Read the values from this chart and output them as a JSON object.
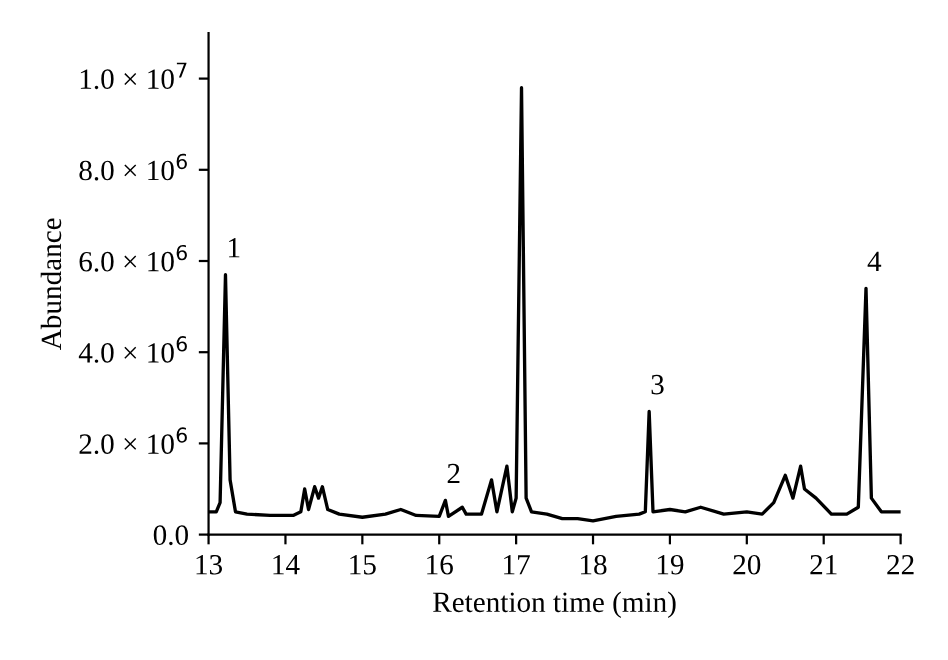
{
  "chart_data": {
    "type": "line",
    "xlabel": "Retention time (min)",
    "ylabel": "Abundance",
    "x": [
      13.0,
      13.1,
      13.15,
      13.22,
      13.28,
      13.35,
      13.5,
      13.8,
      14.1,
      14.2,
      14.25,
      14.3,
      14.38,
      14.43,
      14.48,
      14.55,
      14.7,
      15.0,
      15.3,
      15.5,
      15.7,
      16.0,
      16.08,
      16.12,
      16.3,
      16.35,
      16.55,
      16.68,
      16.75,
      16.88,
      16.95,
      17.0,
      17.07,
      17.13,
      17.2,
      17.4,
      17.6,
      17.8,
      18.0,
      18.3,
      18.6,
      18.68,
      18.73,
      18.78,
      19.0,
      19.2,
      19.4,
      19.7,
      20.0,
      20.2,
      20.35,
      20.5,
      20.6,
      20.7,
      20.75,
      20.9,
      21.1,
      21.3,
      21.45,
      21.55,
      21.62,
      21.75,
      22.0
    ],
    "series": [
      {
        "color": "#000000",
        "values": [
          500000,
          500000,
          700000,
          5700000,
          1200000,
          500000,
          450000,
          420000,
          420000,
          500000,
          1000000,
          550000,
          1050000,
          800000,
          1050000,
          550000,
          450000,
          380000,
          450000,
          550000,
          420000,
          400000,
          750000,
          400000,
          600000,
          450000,
          450000,
          1200000,
          500000,
          1500000,
          500000,
          800000,
          9800000,
          800000,
          500000,
          450000,
          350000,
          350000,
          300000,
          400000,
          450000,
          500000,
          2700000,
          500000,
          550000,
          500000,
          600000,
          450000,
          500000,
          450000,
          700000,
          1300000,
          800000,
          1500000,
          1000000,
          800000,
          450000,
          450000,
          600000,
          5400000,
          800000,
          500000,
          500000
        ]
      }
    ],
    "xlim": [
      13,
      22
    ],
    "xticks": [
      13,
      14,
      15,
      16,
      17,
      18,
      19,
      20,
      21,
      22
    ],
    "ylim": [
      0,
      11000000
    ],
    "yticks": [
      {
        "value": 0,
        "label": "0.0"
      },
      {
        "value": 2000000,
        "label": "2.0 × 10$^{6}$"
      },
      {
        "value": 4000000,
        "label": "4.0 × 10$^{6}$"
      },
      {
        "value": 6000000,
        "label": "6.0 × 10$^{6}$"
      },
      {
        "value": 8000000,
        "label": "8.0 × 10$^{6}$"
      },
      {
        "value": 10000000,
        "label": "1.0 × 10$^{7}$"
      }
    ],
    "annotations": [
      {
        "text": "1",
        "x": 13.22,
        "y": 5700000
      },
      {
        "text": "2",
        "x": 16.08,
        "y": 750000
      },
      {
        "text": "3",
        "x": 18.73,
        "y": 2700000
      },
      {
        "text": "4",
        "x": 21.55,
        "y": 5400000
      }
    ],
    "grid": false,
    "legend": false,
    "marker": "none",
    "line_style": "solid"
  }
}
